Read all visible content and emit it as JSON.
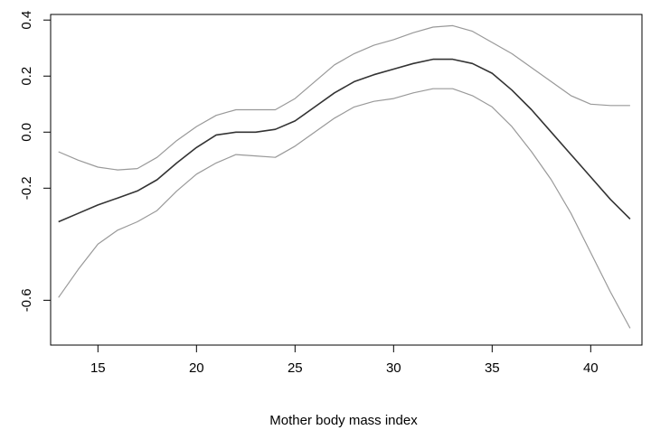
{
  "chart_data": {
    "type": "line",
    "title": "",
    "xlabel": "Mother body mass index",
    "ylabel": "",
    "xlim": [
      12.6,
      42.6
    ],
    "ylim": [
      -0.76,
      0.42
    ],
    "x_ticks": [
      15,
      20,
      25,
      30,
      35,
      40
    ],
    "x_tick_labels": [
      "15",
      "20",
      "25",
      "30",
      "35",
      "40"
    ],
    "y_ticks": [
      -0.6,
      -0.2,
      0.0,
      0.2,
      0.4
    ],
    "y_tick_labels": [
      "-0.6",
      "-0.2",
      "0.0",
      "0.2",
      "0.4"
    ],
    "grid": false,
    "legend": "none",
    "series": [
      {
        "color": "#999999",
        "x": [
          13,
          14,
          15,
          16,
          17,
          18,
          19,
          20,
          21,
          22,
          23,
          24,
          25,
          26,
          27,
          28,
          29,
          30,
          31,
          32,
          33,
          34,
          35,
          36,
          37,
          38,
          39,
          40,
          41,
          42
        ],
        "y": [
          -0.07,
          -0.1,
          -0.125,
          -0.135,
          -0.13,
          -0.09,
          -0.03,
          0.02,
          0.06,
          0.08,
          0.08,
          0.08,
          0.12,
          0.18,
          0.24,
          0.28,
          0.31,
          0.33,
          0.355,
          0.375,
          0.38,
          0.36,
          0.32,
          0.28,
          0.23,
          0.18,
          0.13,
          0.1,
          0.095,
          0.095
        ]
      },
      {
        "color": "#333333",
        "x": [
          13,
          14,
          15,
          16,
          17,
          18,
          19,
          20,
          21,
          22,
          23,
          24,
          25,
          26,
          27,
          28,
          29,
          30,
          31,
          32,
          33,
          34,
          35,
          36,
          37,
          38,
          39,
          40,
          41,
          42
        ],
        "y": [
          -0.32,
          -0.29,
          -0.26,
          -0.235,
          -0.21,
          -0.17,
          -0.11,
          -0.055,
          -0.01,
          0.0,
          0.0,
          0.01,
          0.04,
          0.09,
          0.14,
          0.18,
          0.205,
          0.225,
          0.245,
          0.26,
          0.26,
          0.245,
          0.21,
          0.15,
          0.08,
          0.0,
          -0.08,
          -0.16,
          -0.24,
          -0.31
        ]
      },
      {
        "color": "#999999",
        "x": [
          13,
          14,
          15,
          16,
          17,
          18,
          19,
          20,
          21,
          22,
          23,
          24,
          25,
          26,
          27,
          28,
          29,
          30,
          31,
          32,
          33,
          34,
          35,
          36,
          37,
          38,
          39,
          40,
          41,
          42
        ],
        "y": [
          -0.59,
          -0.49,
          -0.4,
          -0.35,
          -0.32,
          -0.28,
          -0.21,
          -0.15,
          -0.11,
          -0.08,
          -0.085,
          -0.09,
          -0.05,
          0.0,
          0.05,
          0.09,
          0.11,
          0.12,
          0.14,
          0.155,
          0.155,
          0.13,
          0.09,
          0.02,
          -0.07,
          -0.17,
          -0.29,
          -0.43,
          -0.57,
          -0.7
        ]
      }
    ]
  }
}
